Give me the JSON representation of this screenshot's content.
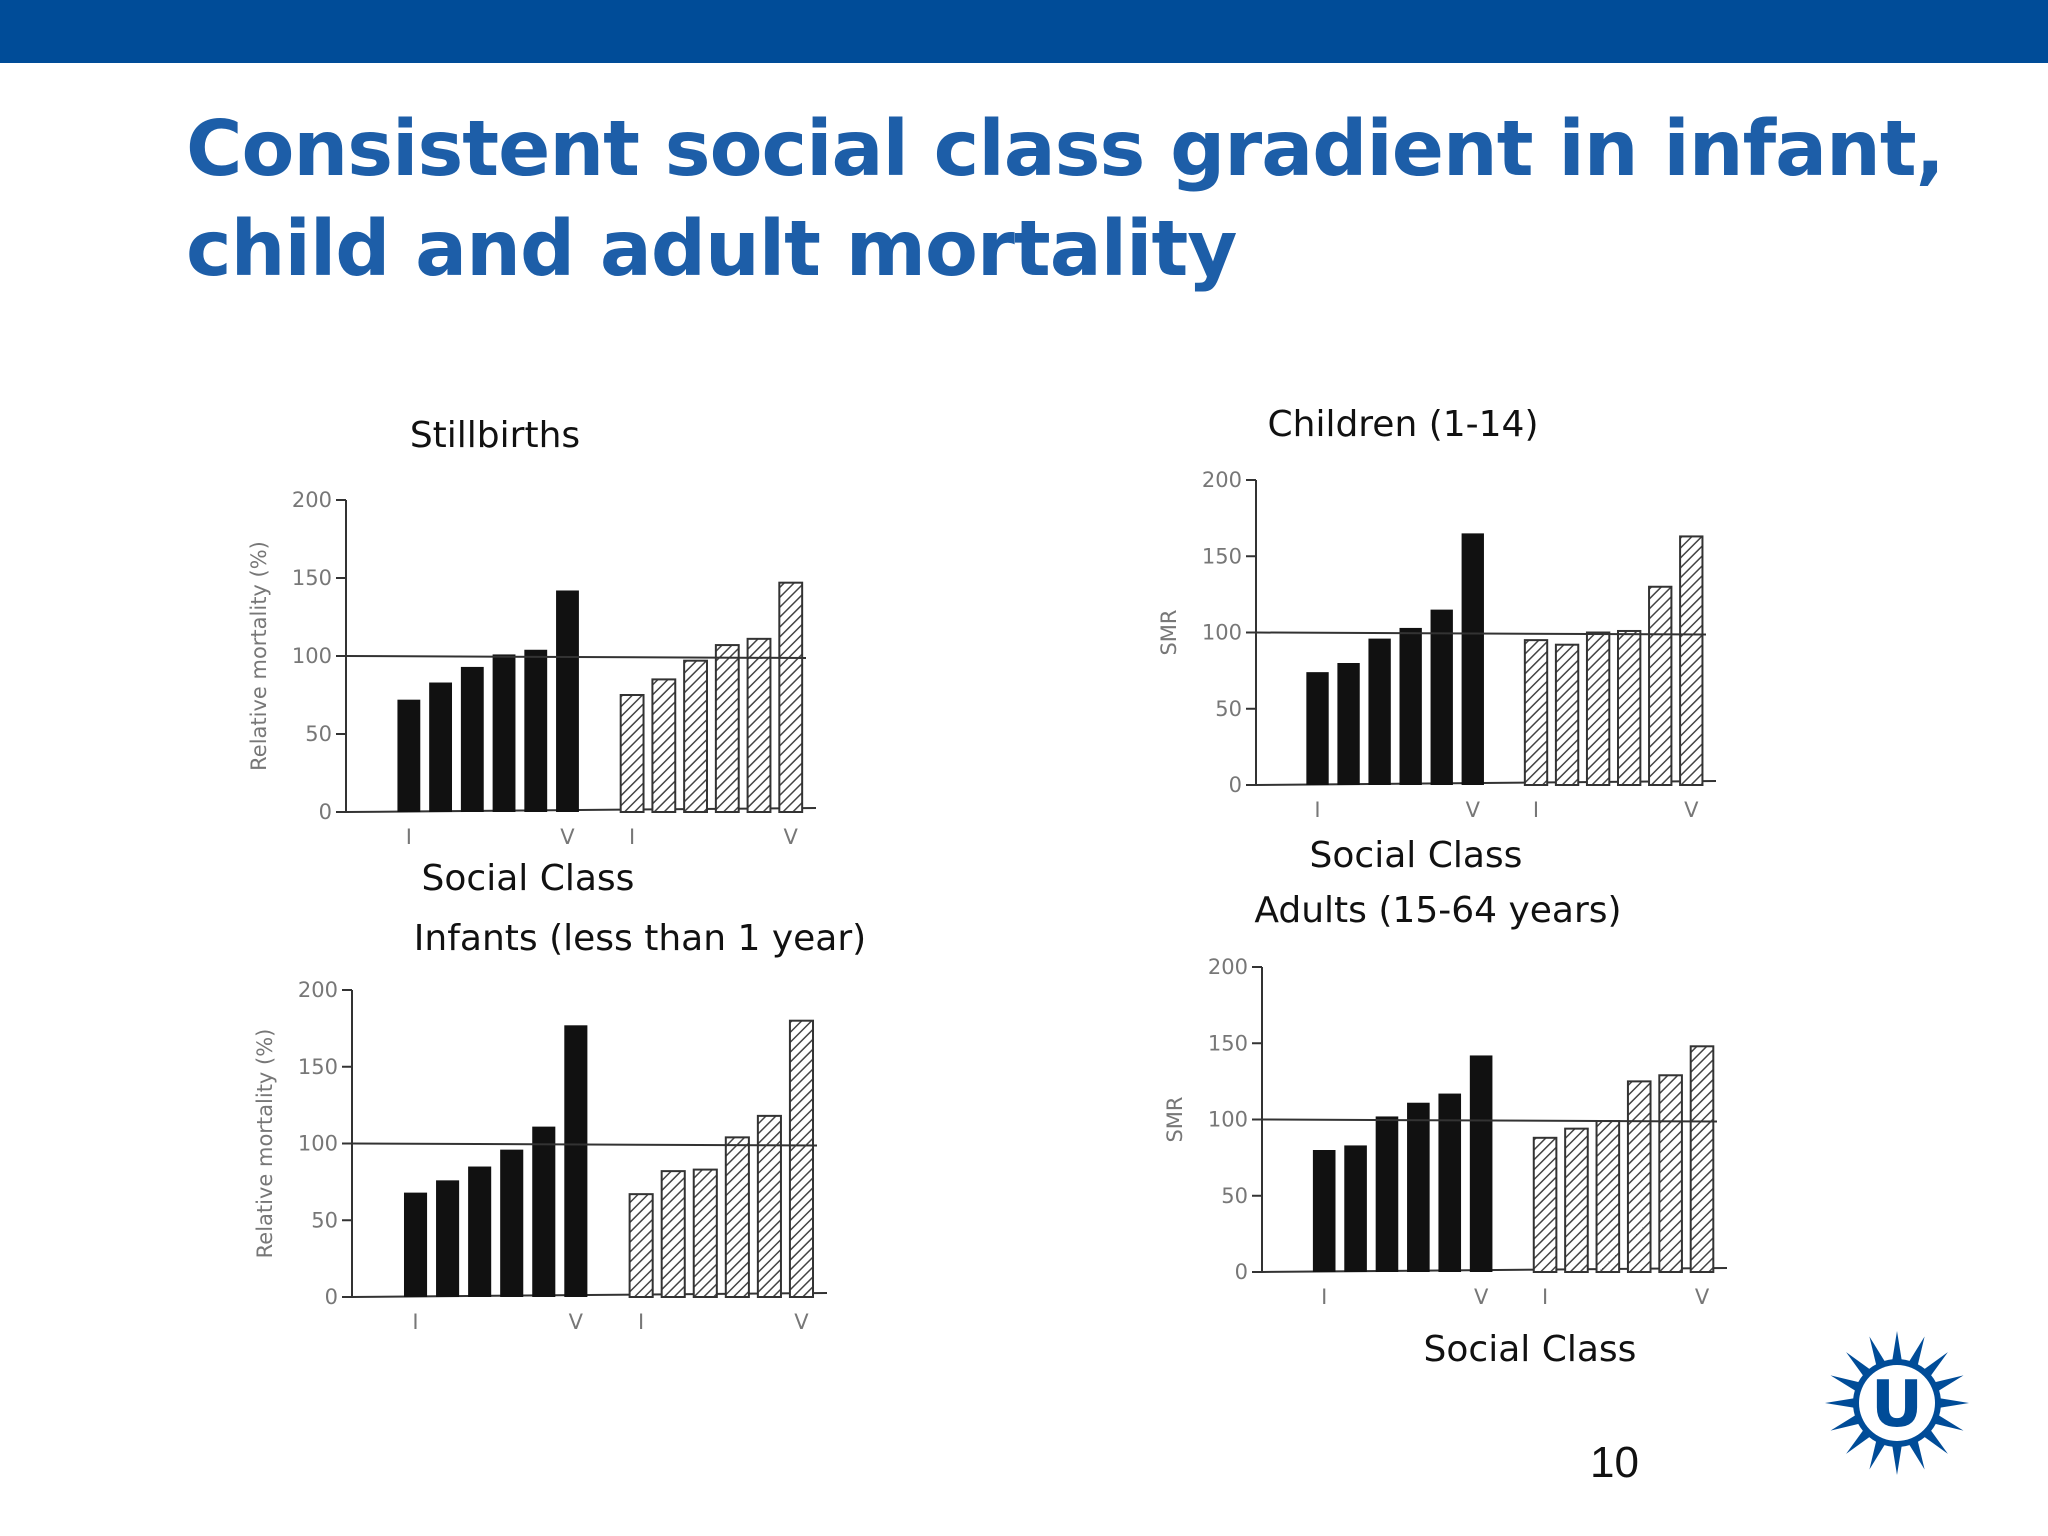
{
  "slide": {
    "title_lines": [
      "Consistent social class gradient in infant,",
      "child and adult mortality"
    ],
    "page_number": "10",
    "colors": {
      "bar": "#004c98",
      "title": "#1d5ea8",
      "ink": "#111111",
      "hatch": "#444444"
    },
    "logo_icon": "university-sun-logo-icon",
    "logo_text": "U"
  },
  "chart_data": [
    {
      "type": "bar",
      "title": "Stillbirths",
      "ylabel": "Relative mortality (%)",
      "xlabel": "Social Class",
      "ylim": [
        0,
        200
      ],
      "yticks": [
        0,
        50,
        100,
        150,
        200
      ],
      "reference_line": 100,
      "group_tick_labels": [
        "I",
        "V",
        "I",
        "V"
      ],
      "series": [
        {
          "pattern": "solid",
          "values": [
            72,
            83,
            93,
            101,
            104,
            142
          ]
        },
        {
          "pattern": "hatched",
          "values": [
            75,
            85,
            97,
            107,
            111,
            147
          ]
        }
      ]
    },
    {
      "type": "bar",
      "title": "Children (1-14)",
      "ylabel": "SMR",
      "xlabel": "Social Class",
      "ylim": [
        0,
        200
      ],
      "yticks": [
        0,
        50,
        100,
        150,
        200
      ],
      "reference_line": 100,
      "group_tick_labels": [
        "I",
        "V",
        "I",
        "V"
      ],
      "series": [
        {
          "pattern": "solid",
          "values": [
            74,
            80,
            96,
            103,
            115,
            165
          ]
        },
        {
          "pattern": "hatched",
          "values": [
            95,
            92,
            100,
            101,
            130,
            163
          ]
        }
      ]
    },
    {
      "type": "bar",
      "title": "Infants (less than 1 year)",
      "ylabel": "Relative mortality (%)",
      "xlabel": "Social Class",
      "ylim": [
        0,
        200
      ],
      "yticks": [
        0,
        50,
        100,
        150,
        200
      ],
      "reference_line": 100,
      "group_tick_labels": [
        "I",
        "V",
        "I",
        "V"
      ],
      "series": [
        {
          "pattern": "solid",
          "values": [
            68,
            76,
            85,
            96,
            111,
            177
          ]
        },
        {
          "pattern": "hatched",
          "values": [
            67,
            82,
            83,
            104,
            118,
            180
          ]
        }
      ]
    },
    {
      "type": "bar",
      "title": "Adults (15-64 years)",
      "ylabel": "SMR",
      "xlabel": "Social Class",
      "ylim": [
        0,
        200
      ],
      "yticks": [
        0,
        50,
        100,
        150,
        200
      ],
      "reference_line": 100,
      "group_tick_labels": [
        "I",
        "V",
        "I",
        "V"
      ],
      "series": [
        {
          "pattern": "solid",
          "values": [
            80,
            83,
            102,
            111,
            117,
            142
          ]
        },
        {
          "pattern": "hatched",
          "values": [
            88,
            94,
            99,
            125,
            129,
            148
          ]
        }
      ]
    }
  ]
}
